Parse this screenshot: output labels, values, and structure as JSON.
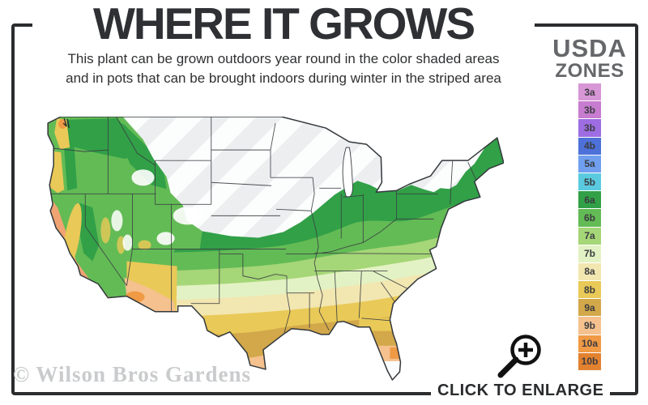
{
  "header": {
    "title": "WHERE IT GROWS",
    "subtitle_line1": "This plant can be grown outdoors year round in the color shaded areas",
    "subtitle_line2": "and in pots that can be brought indoors during winter in the striped area"
  },
  "legend": {
    "heading_line1": "USDA",
    "heading_line2": "ZONES",
    "zones": [
      {
        "label": "3a",
        "color": "#d796d6"
      },
      {
        "label": "3b",
        "color": "#c77ccf"
      },
      {
        "label": "3b",
        "color": "#9e6de2"
      },
      {
        "label": "4b",
        "color": "#4d71d9"
      },
      {
        "label": "5a",
        "color": "#6f9fee"
      },
      {
        "label": "5b",
        "color": "#5acadf"
      },
      {
        "label": "6a",
        "color": "#31a047"
      },
      {
        "label": "6b",
        "color": "#63bb55"
      },
      {
        "label": "7a",
        "color": "#a5d677"
      },
      {
        "label": "7b",
        "color": "#e3f2c4"
      },
      {
        "label": "8a",
        "color": "#f2e6b1"
      },
      {
        "label": "8b",
        "color": "#e9c957"
      },
      {
        "label": "9a",
        "color": "#d2a84a"
      },
      {
        "label": "9b",
        "color": "#f5c18e"
      },
      {
        "label": "10a",
        "color": "#f09a45"
      },
      {
        "label": "10b",
        "color": "#e2812f"
      }
    ]
  },
  "map": {
    "label": "Continental United States hardiness shading map",
    "outline_color": "#33383c",
    "state_line_color": "#3a3e42",
    "stripe_color": "#eceef0",
    "stripe_background": "#fcfdfd",
    "ca_coast_color": "#f0a473",
    "lake_color": "#ffffff"
  },
  "watermark": {
    "text": "© Wilson Bros Gardens"
  },
  "enlarge": {
    "label": "CLICK TO ENLARGE"
  }
}
